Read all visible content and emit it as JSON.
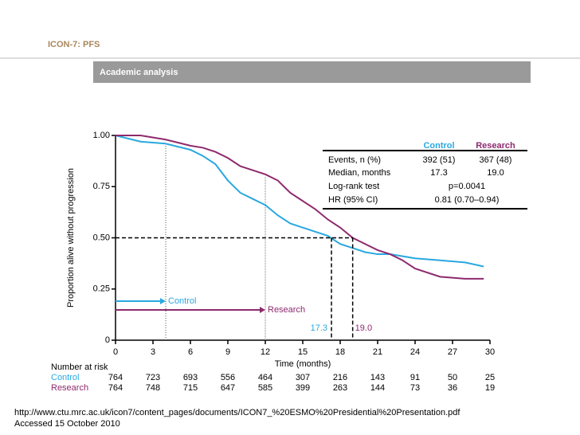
{
  "header": {
    "title": "ICON-7: PFS",
    "banner": "Academic analysis"
  },
  "footer": {
    "source": "http://www.ctu.mrc.ac.uk/icon7/content_pages/documents/ICON7_%20ESMO%20Presidential%20Presentation.pdf",
    "accessed": "Accessed 15 October 2010"
  },
  "chart_data": {
    "type": "line",
    "xlabel": "Time (months)",
    "ylabel": "Proportion alive without progression",
    "x": [
      0,
      2,
      4,
      6,
      7,
      8,
      9,
      10,
      11,
      12,
      13,
      14,
      15,
      16,
      17,
      18,
      19,
      20,
      21,
      22,
      23,
      24,
      26,
      28,
      29.5
    ],
    "series": [
      {
        "name": "Control",
        "color": "#29a8e0",
        "values": [
          1.0,
          0.97,
          0.96,
          0.93,
          0.9,
          0.86,
          0.78,
          0.72,
          0.69,
          0.66,
          0.61,
          0.57,
          0.55,
          0.53,
          0.51,
          0.47,
          0.45,
          0.43,
          0.42,
          0.42,
          0.41,
          0.4,
          0.39,
          0.38,
          0.36
        ]
      },
      {
        "name": "Research",
        "color": "#8e2a6e",
        "values": [
          1.0,
          1.0,
          0.98,
          0.95,
          0.94,
          0.92,
          0.89,
          0.85,
          0.83,
          0.81,
          0.78,
          0.72,
          0.68,
          0.64,
          0.59,
          0.55,
          0.5,
          0.47,
          0.44,
          0.42,
          0.39,
          0.35,
          0.31,
          0.3,
          0.3
        ]
      }
    ],
    "medians": [
      {
        "x": 17.3,
        "text": "17.3"
      },
      {
        "x": 19.0,
        "text": "19.0"
      }
    ],
    "xlim": [
      0,
      30
    ],
    "xticks": [
      0,
      3,
      6,
      9,
      12,
      15,
      18,
      21,
      24,
      27,
      30
    ],
    "ylim": [
      0,
      1
    ],
    "yticks": [
      {
        "value": 0,
        "label": "0"
      },
      {
        "value": 0.25,
        "label": "0.25"
      },
      {
        "value": 0.5,
        "label": "0.50"
      },
      {
        "value": 0.75,
        "label": "0.75"
      },
      {
        "value": 1,
        "label": "1.00"
      }
    ],
    "stats_table": {
      "columns": [
        "Control",
        "Research"
      ],
      "rows": [
        [
          "Events, n (%)",
          "392 (51)",
          "367 (48)"
        ],
        [
          "Median, months",
          "17.3",
          "19.0"
        ],
        [
          "Log-rank test",
          "p=0.0041"
        ],
        [
          "HR (95% CI)",
          "0.81 (0.70–0.94)"
        ]
      ]
    },
    "risk_table": {
      "title": "Number at risk",
      "rows": [
        {
          "name": "Control",
          "values": [
            764,
            723,
            693,
            556,
            464,
            307,
            216,
            143,
            91,
            50,
            25
          ]
        },
        {
          "name": "Research",
          "values": [
            764,
            748,
            715,
            647,
            585,
            399,
            263,
            144,
            73,
            36,
            19
          ]
        }
      ]
    }
  }
}
